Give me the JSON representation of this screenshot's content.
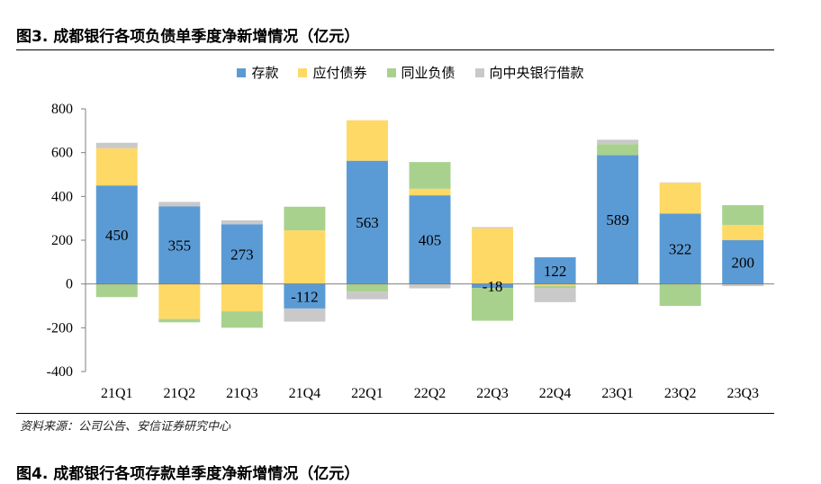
{
  "figure_title": "图3. 成都银行各项负债单季度净新增情况（亿元）",
  "source": "资料来源：公司公告、安信证券研究中心",
  "next_figure_title": "图4. 成都银行各项存款单季度净新增情况（亿元）",
  "chart_data": {
    "type": "bar",
    "stacked": true,
    "categories": [
      "21Q1",
      "21Q2",
      "21Q3",
      "21Q4",
      "22Q1",
      "22Q2",
      "22Q3",
      "22Q4",
      "23Q1",
      "23Q2",
      "23Q3"
    ],
    "series": [
      {
        "name": "存款",
        "color": "#5b9bd5",
        "values": [
          450,
          355,
          273,
          -112,
          563,
          405,
          -18,
          122,
          589,
          322,
          200
        ]
      },
      {
        "name": "应付债券",
        "color": "#ffd966",
        "values": [
          170,
          -160,
          -125,
          245,
          185,
          30,
          255,
          -8,
          -2,
          140,
          70
        ]
      },
      {
        "name": "同业负债",
        "color": "#a9d18e",
        "values": [
          -60,
          -15,
          -75,
          108,
          -35,
          122,
          -150,
          -10,
          50,
          -100,
          90
        ]
      },
      {
        "name": "向中央银行借款",
        "color": "#c9c9c9",
        "values": [
          25,
          20,
          18,
          -60,
          -35,
          -20,
          5,
          -65,
          20,
          2,
          -10
        ]
      }
    ],
    "data_labels": [
      "450",
      "355",
      "273",
      "-112",
      "563",
      "405",
      "-18",
      "122",
      "589",
      "322",
      "200"
    ],
    "ylim": [
      -400,
      800
    ],
    "yticks": [
      -400,
      -200,
      0,
      200,
      400,
      600,
      800
    ],
    "xlabel": "",
    "ylabel": "",
    "legend_position": "top",
    "grid": false
  }
}
